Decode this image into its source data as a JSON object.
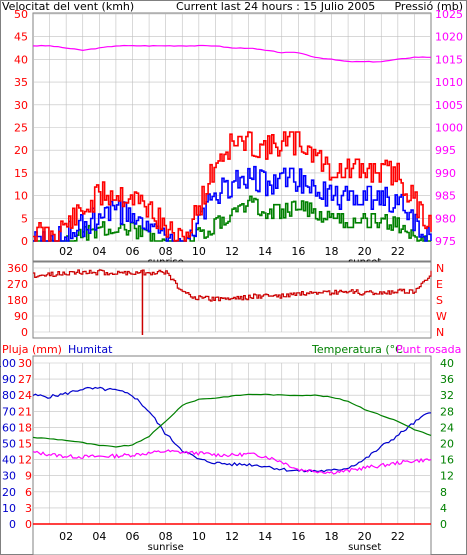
{
  "header": {
    "wind_label": "Velocitat del vent (kmh)",
    "title": "Current last 24 hours : 15 Julio 2005",
    "pressure_label": "Pressió (mb)"
  },
  "colors": {
    "wind": "#ff0000",
    "wind_avg": "#0000ff",
    "wind_min": "#008000",
    "pressure": "#ff00ff",
    "direction": "#cc0000",
    "rain": "#ff0000",
    "humidity": "#0000cc",
    "temperature": "#008000",
    "dewpoint": "#ff00ff",
    "left_axis": "#ff0000",
    "right_axis": "#ff00ff",
    "grid": "#c0c0c0"
  },
  "chart_data": [
    {
      "type": "line",
      "title": "Current last 24 hours : 15 Julio 2005",
      "ylabel": "Velocitat del vent (kmh)",
      "ylabel_right": "Pressió (mb)",
      "ylim": [
        0,
        50
      ],
      "ylim_right": [
        975,
        1025
      ],
      "yticks": [
        "0",
        "5",
        "10",
        "15",
        "20",
        "25",
        "30",
        "35",
        "40",
        "45",
        "50"
      ],
      "yticks_right": [
        "975",
        "980",
        "985",
        "990",
        "995",
        "1000",
        "1005",
        "1010",
        "1015",
        "1020",
        "1025"
      ],
      "xticks": [
        "02",
        "04",
        "06",
        "08",
        "10",
        "12",
        "14",
        "16",
        "18",
        "20",
        "22"
      ],
      "x_annotations": [
        "sunrise",
        "sunset"
      ],
      "grid": true,
      "x": [
        0,
        1,
        2,
        3,
        4,
        5,
        6,
        7,
        8,
        9,
        10,
        11,
        12,
        13,
        14,
        15,
        16,
        17,
        18,
        19,
        20,
        21,
        22,
        23,
        24
      ],
      "series": [
        {
          "values": [
            4,
            4,
            6,
            9,
            13,
            13,
            12,
            10,
            5,
            2,
            10,
            20,
            24,
            24,
            23,
            24,
            24,
            22,
            18,
            18,
            18,
            18,
            17,
            11,
            6
          ]
        },
        {
          "values": [
            2,
            2,
            4,
            6,
            8,
            9,
            8,
            6,
            2,
            0,
            7,
            13,
            15,
            17,
            15,
            16,
            16,
            14,
            12,
            12,
            12,
            12,
            11,
            7,
            3
          ]
        },
        {
          "values": [
            0,
            0,
            1,
            3,
            4,
            5,
            4,
            2,
            0,
            0,
            3,
            5,
            8,
            10,
            8,
            8,
            9,
            8,
            6,
            6,
            6,
            6,
            5,
            3,
            0
          ]
        },
        {
          "values": [
            1018,
            1018,
            1017.5,
            1017,
            1017.5,
            1018,
            1018,
            1018,
            1018,
            1018,
            1018,
            1018,
            1017.5,
            1017.5,
            1017,
            1016.5,
            1016.5,
            1015.5,
            1015,
            1014.5,
            1014.5,
            1014.5,
            1015,
            1015.5,
            1015.5
          ]
        }
      ]
    },
    {
      "type": "line",
      "ylim": [
        0,
        360
      ],
      "yticks": [
        "0",
        "90",
        "180",
        "270",
        "360"
      ],
      "yticks_right": [
        "N",
        "W",
        "S",
        "E",
        "N"
      ],
      "x": [
        0,
        1,
        2,
        3,
        4,
        5,
        6,
        7,
        8,
        9,
        10,
        11,
        12,
        13,
        14,
        15,
        16,
        17,
        18,
        19,
        20,
        21,
        22,
        23,
        24
      ],
      "series": [
        {
          "values": [
            335,
            335,
            350,
            350,
            350,
            345,
            350,
            350,
            350,
            240,
            205,
            200,
            205,
            210,
            220,
            215,
            230,
            225,
            235,
            240,
            235,
            235,
            240,
            245,
            350
          ]
        }
      ]
    },
    {
      "type": "line",
      "ylabel_rain": "Pluja (mm)",
      "ylabel_humidity": "Humitat",
      "ylabel_right": "Temperatura (°C",
      "ylabel_right2": "Punt rosada",
      "yticks_rain": [
        "0",
        "3",
        "6",
        "9",
        "12",
        "15",
        "18",
        "21",
        "24",
        "27",
        "30"
      ],
      "yticks_humidity": [
        "0",
        "10",
        "20",
        "30",
        "40",
        "50",
        "60",
        "70",
        "80",
        "90",
        "100"
      ],
      "yticks_right": [
        "0",
        "4",
        "8",
        "12",
        "16",
        "20",
        "24",
        "28",
        "32",
        "36",
        "40"
      ],
      "ylim_rain": [
        0,
        30
      ],
      "ylim_humidity": [
        0,
        100
      ],
      "ylim_right": [
        0,
        40
      ],
      "xticks": [
        "02",
        "04",
        "06",
        "08",
        "10",
        "12",
        "14",
        "16",
        "18",
        "20",
        "22"
      ],
      "x_annotations": [
        "sunrise",
        "sunset"
      ],
      "x": [
        0,
        1,
        2,
        3,
        4,
        5,
        6,
        7,
        8,
        9,
        10,
        11,
        12,
        13,
        14,
        15,
        16,
        17,
        18,
        19,
        20,
        21,
        22,
        23,
        24
      ],
      "series": [
        {
          "values": [
            0,
            0,
            0,
            0,
            0,
            0,
            0,
            0,
            0,
            0,
            0,
            0,
            0,
            0,
            0,
            0,
            0,
            0,
            0,
            0,
            0,
            0,
            0,
            0,
            0
          ]
        },
        {
          "values": [
            80,
            79,
            81,
            84,
            84,
            83,
            80,
            70,
            56,
            46,
            40,
            38,
            37,
            37,
            36,
            34,
            33,
            33,
            33,
            35,
            40,
            48,
            55,
            63,
            70
          ]
        },
        {
          "values": [
            21.5,
            21.2,
            20.8,
            20.2,
            19.5,
            19.2,
            19.6,
            21.8,
            25.5,
            29.5,
            31,
            31.3,
            31.8,
            32.2,
            32.2,
            32,
            32,
            32,
            31.5,
            30.5,
            28.5,
            27,
            25.5,
            23.5,
            22
          ]
        },
        {
          "values": [
            17.8,
            17.3,
            16.8,
            16.7,
            16.8,
            16.9,
            17.2,
            17.6,
            18.1,
            17.8,
            17.6,
            17.2,
            17.1,
            17.4,
            16.8,
            15.5,
            13.5,
            13.2,
            12.8,
            13.2,
            14,
            14.5,
            15.2,
            15.7,
            16
          ]
        }
      ]
    }
  ]
}
